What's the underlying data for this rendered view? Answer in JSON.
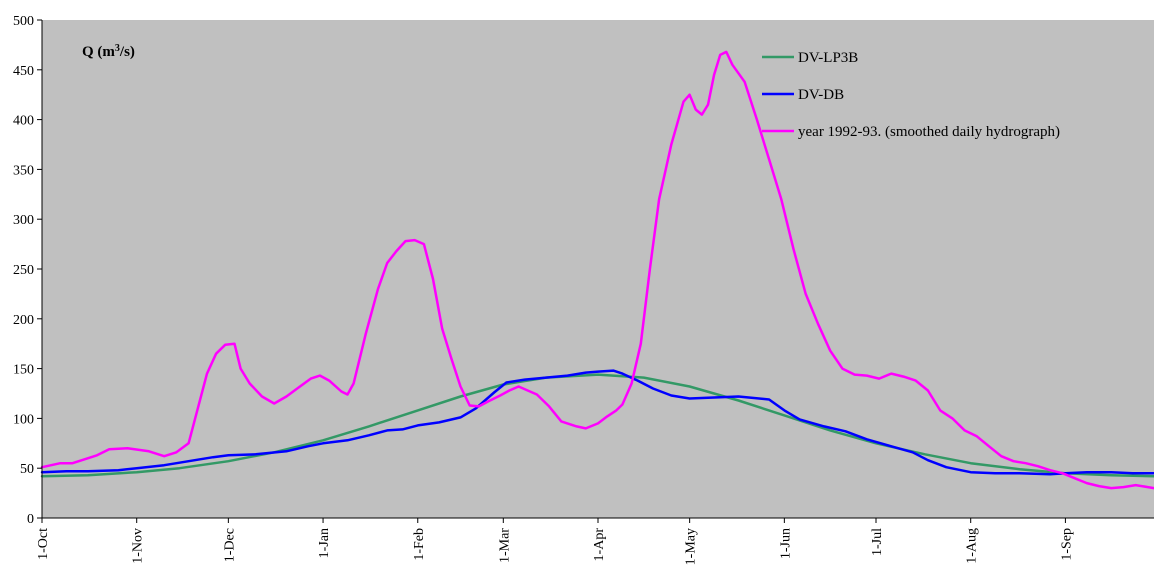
{
  "chart_data": {
    "type": "line",
    "title": "",
    "ylabel_main": "Q (m",
    "ylabel_sup": "3",
    "ylabel_tail": "/s)",
    "ylim": [
      0,
      500
    ],
    "yticks": [
      0,
      50,
      100,
      150,
      200,
      250,
      300,
      350,
      400,
      450,
      500
    ],
    "xlim": [
      0,
      364
    ],
    "xticks": [
      {
        "label": "1-Oct",
        "day": 0
      },
      {
        "label": "1-Nov",
        "day": 31
      },
      {
        "label": "1-Dec",
        "day": 61
      },
      {
        "label": "1-Jan",
        "day": 92
      },
      {
        "label": "1-Feb",
        "day": 123
      },
      {
        "label": "1-Mar",
        "day": 151
      },
      {
        "label": "1-Apr",
        "day": 182
      },
      {
        "label": "1-May",
        "day": 212
      },
      {
        "label": "1-Jun",
        "day": 243
      },
      {
        "label": "1-Jul",
        "day": 273
      },
      {
        "label": "1-Aug",
        "day": 304
      },
      {
        "label": "1-Sep",
        "day": 335
      }
    ],
    "grid": false,
    "legend_position": "top-right",
    "plot_background": "#c0c0c0",
    "series": [
      {
        "name": "DV-LP3B",
        "color": "#339966",
        "points": [
          [
            0,
            42
          ],
          [
            15,
            43
          ],
          [
            31,
            46
          ],
          [
            45,
            50
          ],
          [
            61,
            57
          ],
          [
            76,
            66
          ],
          [
            92,
            78
          ],
          [
            107,
            92
          ],
          [
            123,
            108
          ],
          [
            137,
            122
          ],
          [
            151,
            134
          ],
          [
            165,
            141
          ],
          [
            182,
            144
          ],
          [
            197,
            141
          ],
          [
            212,
            132
          ],
          [
            228,
            118
          ],
          [
            243,
            103
          ],
          [
            258,
            88
          ],
          [
            273,
            75
          ],
          [
            289,
            64
          ],
          [
            304,
            55
          ],
          [
            320,
            49
          ],
          [
            335,
            45
          ],
          [
            350,
            43
          ],
          [
            364,
            42
          ]
        ]
      },
      {
        "name": "DV-DB",
        "color": "#0000ff",
        "points": [
          [
            0,
            46
          ],
          [
            8,
            47
          ],
          [
            15,
            47
          ],
          [
            25,
            48
          ],
          [
            31,
            50
          ],
          [
            40,
            53
          ],
          [
            50,
            58
          ],
          [
            56,
            61
          ],
          [
            61,
            63
          ],
          [
            70,
            64
          ],
          [
            80,
            67
          ],
          [
            87,
            72
          ],
          [
            92,
            75
          ],
          [
            100,
            78
          ],
          [
            107,
            83
          ],
          [
            113,
            88
          ],
          [
            118,
            89
          ],
          [
            123,
            93
          ],
          [
            130,
            96
          ],
          [
            137,
            101
          ],
          [
            142,
            110
          ],
          [
            148,
            126
          ],
          [
            152,
            136
          ],
          [
            158,
            139
          ],
          [
            165,
            141
          ],
          [
            172,
            143
          ],
          [
            178,
            146
          ],
          [
            182,
            147
          ],
          [
            187,
            148
          ],
          [
            190,
            145
          ],
          [
            195,
            138
          ],
          [
            200,
            130
          ],
          [
            206,
            123
          ],
          [
            212,
            120
          ],
          [
            220,
            121
          ],
          [
            228,
            122
          ],
          [
            238,
            119
          ],
          [
            243,
            108
          ],
          [
            248,
            99
          ],
          [
            256,
            92
          ],
          [
            263,
            87
          ],
          [
            270,
            79
          ],
          [
            278,
            72
          ],
          [
            285,
            66
          ],
          [
            290,
            58
          ],
          [
            296,
            51
          ],
          [
            304,
            46
          ],
          [
            312,
            45
          ],
          [
            320,
            45
          ],
          [
            330,
            44
          ],
          [
            335,
            45
          ],
          [
            342,
            46
          ],
          [
            350,
            46
          ],
          [
            357,
            45
          ],
          [
            364,
            45
          ]
        ]
      },
      {
        "name": "year 1992-93. (smoothed daily hydrograph)",
        "color": "#ff00ff",
        "points": [
          [
            0,
            51
          ],
          [
            6,
            55
          ],
          [
            10,
            55
          ],
          [
            18,
            63
          ],
          [
            22,
            69
          ],
          [
            28,
            70
          ],
          [
            35,
            67
          ],
          [
            40,
            62
          ],
          [
            44,
            66
          ],
          [
            48,
            75
          ],
          [
            51,
            110
          ],
          [
            54,
            145
          ],
          [
            57,
            165
          ],
          [
            60,
            174
          ],
          [
            63,
            175
          ],
          [
            65,
            150
          ],
          [
            68,
            135
          ],
          [
            72,
            122
          ],
          [
            76,
            115
          ],
          [
            80,
            122
          ],
          [
            84,
            131
          ],
          [
            88,
            140
          ],
          [
            91,
            143
          ],
          [
            94,
            138
          ],
          [
            98,
            127
          ],
          [
            100,
            124
          ],
          [
            102,
            135
          ],
          [
            106,
            185
          ],
          [
            110,
            230
          ],
          [
            113,
            256
          ],
          [
            116,
            268
          ],
          [
            119,
            278
          ],
          [
            122,
            279
          ],
          [
            125,
            275
          ],
          [
            128,
            240
          ],
          [
            131,
            190
          ],
          [
            134,
            160
          ],
          [
            137,
            132
          ],
          [
            140,
            113
          ],
          [
            143,
            112
          ],
          [
            146,
            117
          ],
          [
            150,
            123
          ],
          [
            153,
            128
          ],
          [
            156,
            132
          ],
          [
            159,
            128
          ],
          [
            162,
            124
          ],
          [
            166,
            112
          ],
          [
            170,
            97
          ],
          [
            175,
            92
          ],
          [
            178,
            90
          ],
          [
            182,
            95
          ],
          [
            185,
            102
          ],
          [
            188,
            108
          ],
          [
            190,
            114
          ],
          [
            193,
            135
          ],
          [
            196,
            175
          ],
          [
            199,
            250
          ],
          [
            202,
            320
          ],
          [
            206,
            375
          ],
          [
            210,
            418
          ],
          [
            212,
            425
          ],
          [
            214,
            410
          ],
          [
            216,
            405
          ],
          [
            218,
            415
          ],
          [
            220,
            445
          ],
          [
            222,
            465
          ],
          [
            224,
            468
          ],
          [
            226,
            455
          ],
          [
            230,
            438
          ],
          [
            234,
            400
          ],
          [
            238,
            360
          ],
          [
            242,
            320
          ],
          [
            246,
            270
          ],
          [
            250,
            225
          ],
          [
            254,
            195
          ],
          [
            258,
            168
          ],
          [
            262,
            150
          ],
          [
            266,
            144
          ],
          [
            270,
            143
          ],
          [
            274,
            140
          ],
          [
            278,
            145
          ],
          [
            282,
            142
          ],
          [
            286,
            138
          ],
          [
            290,
            128
          ],
          [
            294,
            108
          ],
          [
            298,
            100
          ],
          [
            302,
            88
          ],
          [
            306,
            82
          ],
          [
            310,
            72
          ],
          [
            314,
            62
          ],
          [
            318,
            57
          ],
          [
            322,
            55
          ],
          [
            326,
            52
          ],
          [
            330,
            48
          ],
          [
            334,
            45
          ],
          [
            338,
            40
          ],
          [
            342,
            35
          ],
          [
            346,
            32
          ],
          [
            350,
            30
          ],
          [
            354,
            31
          ],
          [
            358,
            33
          ],
          [
            362,
            31
          ],
          [
            364,
            30
          ]
        ]
      }
    ]
  }
}
